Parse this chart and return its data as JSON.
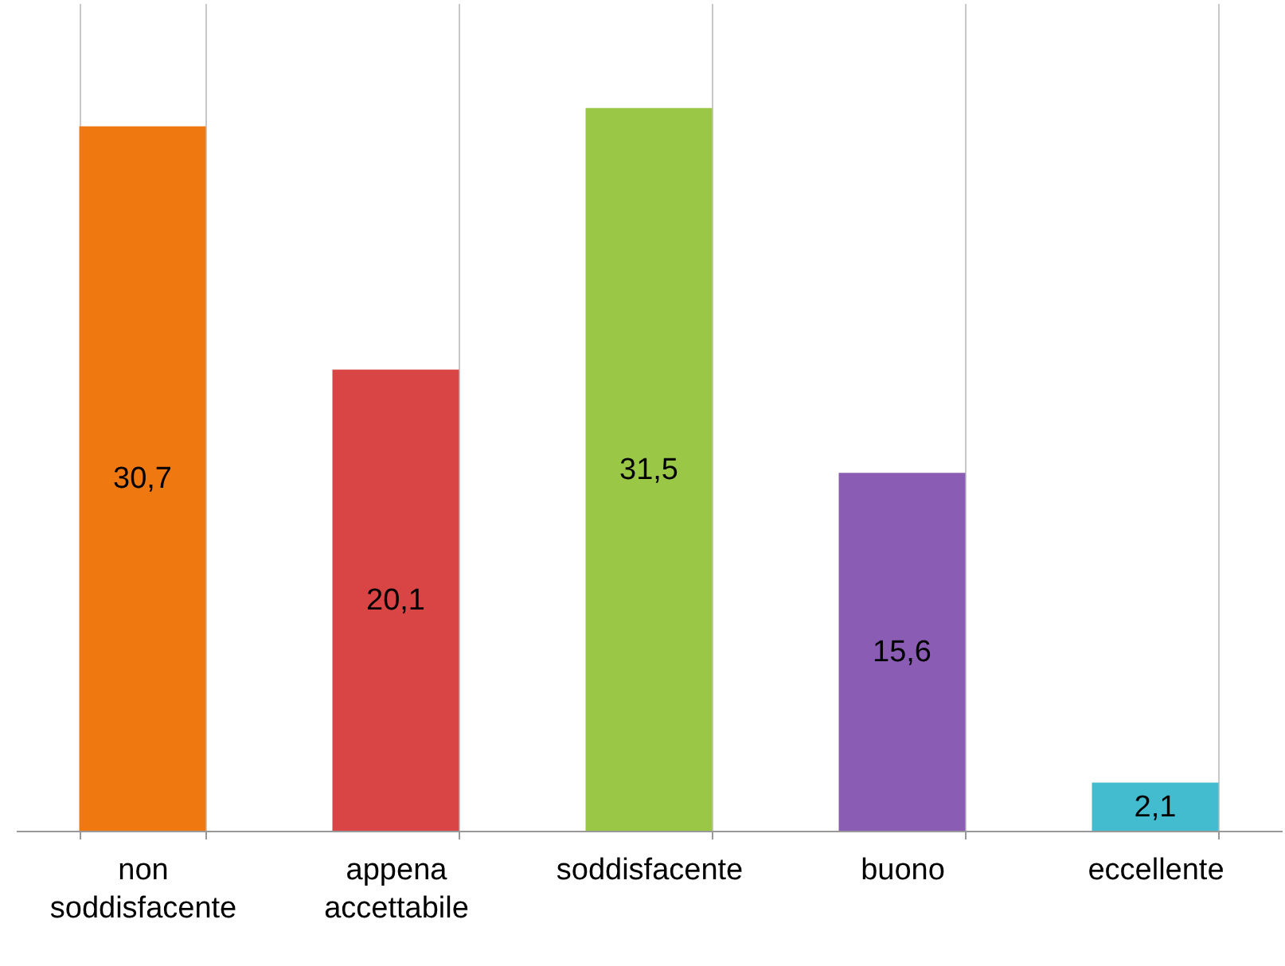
{
  "chart_data": {
    "type": "bar",
    "categories": [
      "non soddisfacente",
      "appena accettabile",
      "soddisfacente",
      "buono",
      "eccellente"
    ],
    "values": [
      30.7,
      20.1,
      31.5,
      15.6,
      2.1
    ],
    "colors": [
      "#f07810",
      "#d94444",
      "#9ac846",
      "#8a5cb4",
      "#44bcd0"
    ],
    "value_labels": [
      "30,7",
      "20,1",
      "31,5",
      "15,6",
      "2,1"
    ],
    "grid": "x",
    "tick_labels": "x"
  }
}
